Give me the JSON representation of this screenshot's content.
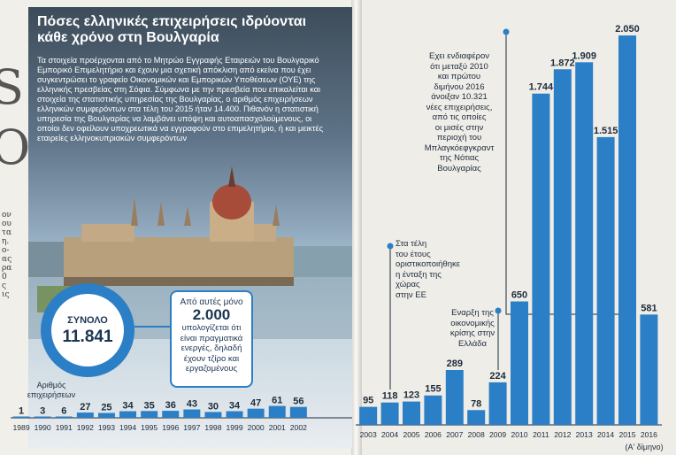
{
  "article": {
    "title_line1": "Πόσες ελληνικές επιχειρήσεις ιδρύονται",
    "title_line2": "κάθε χρόνο στη Βουλγαρία",
    "body": "Τα στοιχεία προέρχονται από το Μητρώο Εγγραφής Εταιρειών του Βουλγαρικό Εμπορικό Επιμελητήριο και έχουν μια σχετική απόκλιση από εκείνα που έχει συγκεντρώσει το γραφείο Οικονομικών και Εμπορικών Υποθέσεων (ΟΥΕ) της ελληνικής πρεσβείας στη Σόφια. Σύμφωνα με την πρεσβεία που επικαλείται και στοιχεία της στατιστικής υπηρεσίας της Βουλγαρίας, ο αριθμός επιχειρήσεων ελληνικών συμφερόντων στα τέλη του 2015 ήταν 14.400. Πιθανόν η στατιστική υπηρεσία της Βουλγαρίας να λαμβάνει υπόψη και αυτοαπασχολούμενους, οι οποίοι δεν οφείλουν υποχρεωτικά να εγγραφούν στο επιμελητήριο, ή και μεικτές εταιρείες ελληνοκυπριακών συμφερόντων"
  },
  "total": {
    "label": "ΣΥΝΟΛΟ",
    "value": "11.841"
  },
  "active": {
    "pre": "Από αυτές μόνο",
    "value": "2.000",
    "post_line1": "υπολογίζεται ότι",
    "post_line2": "είναι πραγματικά",
    "post_line3": "ενεργές, δηλαδή",
    "post_line4": "έχουν τζίρο και",
    "post_line5": "εργαζομένους"
  },
  "annotations": {
    "interest_1": "Εχει ενδιαφέρον",
    "interest_2": "ότι μεταξύ 2010",
    "interest_3": "και πρώτου",
    "interest_4": "διμήνου 2016",
    "interest_5": "άνοιξαν 10.321",
    "interest_6": "νέες επιχειρήσεις,",
    "interest_7": "από τις οποίες",
    "interest_8": "οι μισές στην",
    "interest_9": "περιοχή του",
    "interest_10": "Μπλαγκόεφγκραντ",
    "interest_11": "της Νότιας",
    "interest_12": "Βουλγαρίας",
    "eu_1": "Στα τέλη",
    "eu_2": "του έτους",
    "eu_3": "οριστικοποιήθηκε",
    "eu_4": "η ένταξη της",
    "eu_5": "χώρας",
    "eu_6": "στην ΕΕ",
    "crisis_1": "Εναρξη της",
    "crisis_2": "οικονομικής",
    "crisis_3": "κρίσης στην",
    "crisis_4": "Ελλάδα",
    "bimonth": "(Α' δίμηνο)"
  },
  "left_axis_label_1": "Αριθμός",
  "left_axis_label_2": "επιχειρήσεων",
  "colors": {
    "bar": "#2b7fc6",
    "bar_light": "#4f9ad6",
    "axis": "#1d2b3a"
  },
  "chart_data": [
    {
      "type": "bar",
      "title": "",
      "xlabel": "",
      "ylabel": "Αριθμός επιχειρήσεων",
      "categories": [
        "1989",
        "1990",
        "1991",
        "1992",
        "1993",
        "1994",
        "1995",
        "1996",
        "1997",
        "1998",
        "1999",
        "2000",
        "2001",
        "2002"
      ],
      "values": [
        1,
        3,
        6,
        27,
        25,
        34,
        35,
        36,
        43,
        30,
        34,
        47,
        61,
        56
      ],
      "labels": [
        "1",
        "3",
        "6",
        "27",
        "25",
        "34",
        "35",
        "36",
        "43",
        "30",
        "34",
        "47",
        "61",
        "56"
      ]
    },
    {
      "type": "bar",
      "title": "",
      "xlabel": "",
      "ylabel": "",
      "categories": [
        "2003",
        "2004",
        "2005",
        "2006",
        "2007",
        "2008",
        "2009",
        "2010",
        "2011",
        "2012",
        "2013",
        "2014",
        "2015",
        "2016"
      ],
      "values": [
        95,
        118,
        123,
        155,
        289,
        78,
        224,
        650,
        1744,
        1872,
        1909,
        1515,
        2050,
        581
      ],
      "labels": [
        "95",
        "118",
        "123",
        "155",
        "289",
        "78",
        "224",
        "650",
        "1.744",
        "1.872",
        "1.909",
        "1.515",
        "2.050",
        "581"
      ],
      "ylim": [
        0,
        2050
      ]
    }
  ]
}
